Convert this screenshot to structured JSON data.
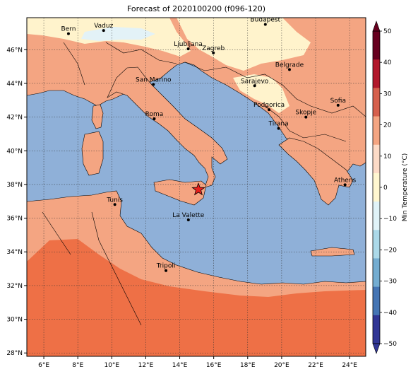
{
  "title": "Forecast of 2020100200 (f096-120)",
  "axes": {
    "x_ticks": [
      "6°E",
      "8°E",
      "10°E",
      "12°E",
      "14°E",
      "16°E",
      "18°E",
      "20°E",
      "22°E",
      "24°E"
    ],
    "y_ticks": [
      "46°N",
      "44°N",
      "42°N",
      "40°N",
      "38°N",
      "36°N",
      "34°N",
      "32°N",
      "30°N",
      "28°N"
    ]
  },
  "colorbar": {
    "label": "Min Temperature (°C)",
    "ticks": [
      "50",
      "40",
      "30",
      "20",
      "10",
      "0",
      "−10",
      "−20",
      "−30",
      "−40",
      "−50"
    ],
    "colors": [
      "#67001f",
      "#b2182b",
      "#d6604d",
      "#f4a582",
      "#fddbc7",
      "#fff7d0",
      "#e0f3f8",
      "#abd9e9",
      "#74add1",
      "#4575b4",
      "#313695"
    ]
  },
  "map_colors": {
    "sea": "#8fb0d8",
    "land_warm": "#f4a582",
    "land_hot": "#ee7046",
    "land_mild": "#fff3cc",
    "land_cool": "#e3f2f7"
  },
  "cities": [
    {
      "name": "Bern",
      "lon": 7.45,
      "lat": 46.95
    },
    {
      "name": "Vaduz",
      "lon": 9.52,
      "lat": 47.14
    },
    {
      "name": "Budapest",
      "lon": 19.04,
      "lat": 47.5
    },
    {
      "name": "Ljubljana",
      "lon": 14.5,
      "lat": 46.05
    },
    {
      "name": "Zagreb",
      "lon": 15.98,
      "lat": 45.81
    },
    {
      "name": "Belgrade",
      "lon": 20.46,
      "lat": 44.82
    },
    {
      "name": "San Marino",
      "lon": 12.45,
      "lat": 43.94
    },
    {
      "name": "Sarajevo",
      "lon": 18.41,
      "lat": 43.86
    },
    {
      "name": "Sofia",
      "lon": 23.32,
      "lat": 42.7
    },
    {
      "name": "Podgorica",
      "lon": 19.26,
      "lat": 42.44
    },
    {
      "name": "Skopje",
      "lon": 21.43,
      "lat": 42.0
    },
    {
      "name": "Roma",
      "lon": 12.5,
      "lat": 41.9
    },
    {
      "name": "Tirana",
      "lon": 19.82,
      "lat": 41.33
    },
    {
      "name": "Athens",
      "lon": 23.73,
      "lat": 37.98
    },
    {
      "name": "Tunis",
      "lon": 10.18,
      "lat": 36.81
    },
    {
      "name": "La Valette",
      "lon": 14.51,
      "lat": 35.9
    },
    {
      "name": "Tripoli",
      "lon": 13.19,
      "lat": 32.89
    }
  ],
  "marker": {
    "name": "star-marker",
    "lon": 15.1,
    "lat": 37.7
  }
}
